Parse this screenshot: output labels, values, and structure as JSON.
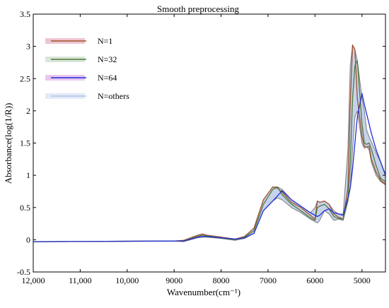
{
  "chart_data": {
    "type": "line",
    "title": "Smooth preprocessing",
    "xlabel": "Wavenumber(cm⁻¹)",
    "ylabel": "Absorbance(log(1/R))",
    "xlim": [
      12000,
      4500
    ],
    "ylim": [
      -0.5,
      3.5
    ],
    "x_reversed": true,
    "x_ticks": [
      {
        "value": 12000,
        "label": "12,000"
      },
      {
        "value": 11000,
        "label": "11,000"
      },
      {
        "value": 10000,
        "label": "10,000"
      },
      {
        "value": 9000,
        "label": "9000"
      },
      {
        "value": 8000,
        "label": "8000"
      },
      {
        "value": 7000,
        "label": "7000"
      },
      {
        "value": 6000,
        "label": "6000"
      },
      {
        "value": 5000,
        "label": "5000"
      }
    ],
    "y_ticks": [
      {
        "value": -0.5,
        "label": "-0.5"
      },
      {
        "value": 0,
        "label": "0"
      },
      {
        "value": 0.5,
        "label": "0.5"
      },
      {
        "value": 1,
        "label": "1"
      },
      {
        "value": 1.5,
        "label": "1.5"
      },
      {
        "value": 2,
        "label": "2"
      },
      {
        "value": 2.5,
        "label": "2.5"
      },
      {
        "value": 3,
        "label": "3"
      },
      {
        "value": 3.5,
        "label": "3.5"
      }
    ],
    "grid": false,
    "legend_position": "top-left",
    "band": {
      "name": "N=others",
      "color": "#b3c3e6",
      "x": [
        12000,
        9000,
        8800,
        8500,
        8400,
        8300,
        8000,
        7700,
        7500,
        7300,
        7100,
        6900,
        6800,
        6700,
        6500,
        6300,
        6100,
        6000,
        5950,
        5900,
        5800,
        5700,
        5600,
        5500,
        5400,
        5300,
        5250,
        5200,
        5150,
        5100,
        5000,
        4950,
        4900,
        4850,
        4800,
        4700,
        4600,
        4500
      ],
      "upper": [
        -0.03,
        -0.02,
        -0.01,
        0.07,
        0.09,
        0.07,
        0.04,
        0.01,
        0.05,
        0.18,
        0.62,
        0.82,
        0.82,
        0.78,
        0.62,
        0.52,
        0.42,
        0.5,
        0.6,
        0.58,
        0.6,
        0.55,
        0.45,
        0.4,
        0.4,
        1.4,
        2.7,
        3.02,
        2.95,
        2.78,
        2.2,
        2.0,
        1.7,
        1.6,
        1.52,
        1.35,
        1.2,
        1.02
      ],
      "lower": [
        -0.03,
        -0.02,
        -0.03,
        0.03,
        0.04,
        0.04,
        0.02,
        -0.01,
        0.02,
        0.1,
        0.45,
        0.6,
        0.65,
        0.62,
        0.5,
        0.42,
        0.32,
        0.28,
        0.26,
        0.3,
        0.45,
        0.4,
        0.3,
        0.32,
        0.3,
        0.6,
        0.8,
        1.4,
        1.9,
        2.0,
        1.5,
        1.42,
        1.44,
        1.4,
        1.2,
        1.0,
        0.9,
        0.85
      ]
    },
    "series": [
      {
        "name": "N=1",
        "color": "#a0522d",
        "x": [
          12000,
          9000,
          8800,
          8500,
          8400,
          8300,
          8000,
          7700,
          7500,
          7300,
          7100,
          6900,
          6800,
          6700,
          6500,
          6300,
          6100,
          6000,
          5950,
          5900,
          5800,
          5700,
          5600,
          5500,
          5400,
          5300,
          5250,
          5200,
          5150,
          5100,
          5000,
          4950,
          4900,
          4850,
          4800,
          4700,
          4600,
          4500
        ],
        "values": [
          -0.03,
          -0.02,
          -0.01,
          0.07,
          0.09,
          0.07,
          0.04,
          0.01,
          0.05,
          0.18,
          0.62,
          0.82,
          0.8,
          0.74,
          0.58,
          0.5,
          0.38,
          0.32,
          0.6,
          0.58,
          0.6,
          0.55,
          0.4,
          0.35,
          0.32,
          0.8,
          2.1,
          3.02,
          2.95,
          2.2,
          1.6,
          1.45,
          1.44,
          1.45,
          1.25,
          1.05,
          0.92,
          0.86
        ]
      },
      {
        "name": "N=32",
        "color": "#4f7a3a",
        "x": [
          12000,
          9000,
          8800,
          8500,
          8400,
          8300,
          8000,
          7700,
          7500,
          7300,
          7100,
          6900,
          6800,
          6700,
          6500,
          6300,
          6100,
          6000,
          5950,
          5900,
          5800,
          5700,
          5600,
          5500,
          5400,
          5300,
          5250,
          5200,
          5150,
          5100,
          5000,
          4950,
          4900,
          4850,
          4800,
          4700,
          4600,
          4500
        ],
        "values": [
          -0.03,
          -0.02,
          -0.02,
          0.05,
          0.07,
          0.06,
          0.03,
          0.0,
          0.04,
          0.14,
          0.55,
          0.78,
          0.82,
          0.7,
          0.55,
          0.45,
          0.34,
          0.3,
          0.5,
          0.52,
          0.55,
          0.48,
          0.36,
          0.33,
          0.32,
          0.6,
          1.2,
          2.2,
          2.7,
          2.78,
          1.8,
          1.5,
          1.48,
          1.5,
          1.4,
          1.15,
          0.95,
          0.9
        ]
      },
      {
        "name": "N=64",
        "color": "#1f2fd6",
        "x": [
          12000,
          9000,
          8800,
          8500,
          8400,
          8300,
          8000,
          7700,
          7500,
          7300,
          7100,
          6900,
          6800,
          6700,
          6500,
          6300,
          6100,
          6000,
          5950,
          5900,
          5800,
          5700,
          5600,
          5500,
          5400,
          5300,
          5250,
          5200,
          5150,
          5100,
          5000,
          4950,
          4900,
          4850,
          4800,
          4700,
          4600,
          4500
        ],
        "values": [
          -0.03,
          -0.02,
          -0.02,
          0.04,
          0.05,
          0.05,
          0.03,
          0.01,
          0.03,
          0.1,
          0.45,
          0.6,
          0.68,
          0.76,
          0.62,
          0.52,
          0.42,
          0.38,
          0.36,
          0.38,
          0.45,
          0.48,
          0.42,
          0.4,
          0.38,
          0.65,
          0.8,
          1.1,
          1.5,
          1.9,
          2.27,
          2.1,
          1.95,
          1.8,
          1.65,
          1.4,
          1.2,
          1.0
        ]
      }
    ],
    "legend": [
      {
        "label": "N=1",
        "color": "#a0522d",
        "swatch": "#e8b6c6"
      },
      {
        "label": "N=32",
        "color": "#4f7a3a",
        "swatch": "#cfe0cf"
      },
      {
        "label": "N=64",
        "color": "#1f2fd6",
        "swatch": "#e3b8ee"
      },
      {
        "label": "N=others",
        "color": "#b3c3e6",
        "swatch": "#dde4f7"
      }
    ]
  }
}
